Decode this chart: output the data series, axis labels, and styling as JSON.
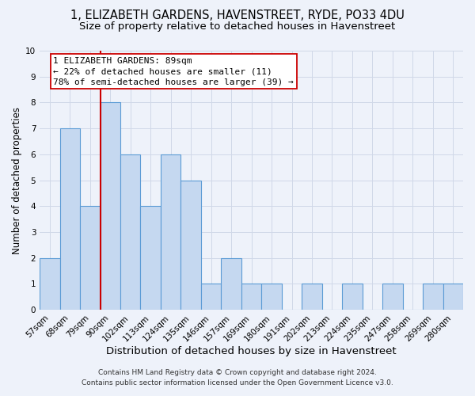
{
  "title": "1, ELIZABETH GARDENS, HAVENSTREET, RYDE, PO33 4DU",
  "subtitle": "Size of property relative to detached houses in Havenstreet",
  "xlabel": "Distribution of detached houses by size in Havenstreet",
  "ylabel": "Number of detached properties",
  "categories": [
    "57sqm",
    "68sqm",
    "79sqm",
    "90sqm",
    "102sqm",
    "113sqm",
    "124sqm",
    "135sqm",
    "146sqm",
    "157sqm",
    "169sqm",
    "180sqm",
    "191sqm",
    "202sqm",
    "213sqm",
    "224sqm",
    "235sqm",
    "247sqm",
    "258sqm",
    "269sqm",
    "280sqm"
  ],
  "values": [
    2,
    7,
    4,
    8,
    6,
    4,
    6,
    5,
    1,
    2,
    1,
    1,
    0,
    1,
    0,
    1,
    0,
    1,
    0,
    1,
    1
  ],
  "bar_color": "#c5d8f0",
  "bar_edge_color": "#5b9bd5",
  "property_line_index": 3,
  "property_line_color": "#cc0000",
  "annotation_line1": "1 ELIZABETH GARDENS: 89sqm",
  "annotation_line2": "← 22% of detached houses are smaller (11)",
  "annotation_line3": "78% of semi-detached houses are larger (39) →",
  "ylim": [
    0,
    10
  ],
  "yticks": [
    0,
    1,
    2,
    3,
    4,
    5,
    6,
    7,
    8,
    9,
    10
  ],
  "grid_color": "#d0d8e8",
  "background_color": "#eef2fa",
  "title_fontsize": 10.5,
  "subtitle_fontsize": 9.5,
  "xlabel_fontsize": 9.5,
  "ylabel_fontsize": 8.5,
  "tick_fontsize": 7.5,
  "annotation_fontsize": 8,
  "footer_fontsize": 6.5,
  "footer_line1": "Contains HM Land Registry data © Crown copyright and database right 2024.",
  "footer_line2": "Contains public sector information licensed under the Open Government Licence v3.0."
}
